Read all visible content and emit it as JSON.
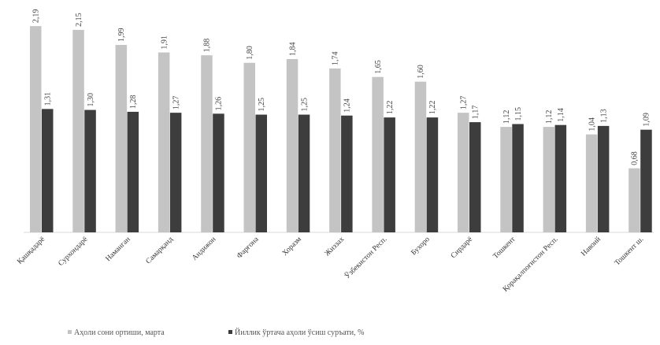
{
  "chart_data": {
    "type": "bar",
    "categories": [
      "Қашқадарё",
      "Сурхондарё",
      "Наманган",
      "Самарқанд",
      "Андижон",
      "Фарғона",
      "Хоразм",
      "Жиззах",
      "Ўзбекистон Респ.",
      "Бухоро",
      "Сирдарё",
      "Тошкент",
      "Қорақалпоғистон Респ.",
      "Навоий",
      "Тошкент ш."
    ],
    "series": [
      {
        "name": "Аҳоли сони ортиши, марта",
        "color": "#c4c4c4",
        "values": [
          2.19,
          2.15,
          1.99,
          1.91,
          1.88,
          1.8,
          1.84,
          1.74,
          1.65,
          1.6,
          1.27,
          1.12,
          1.12,
          1.04,
          0.68
        ],
        "labels": [
          "2,19",
          "2,15",
          "1,99",
          "1,91",
          "1,88",
          "1,80",
          "1,84",
          "1,74",
          "1,65",
          "1,60",
          "1,27",
          "1,12",
          "1,12",
          "1,04",
          "0,68"
        ]
      },
      {
        "name": "Йиллик ўртача аҳоли ўсиш суръати, %",
        "color": "#3d3d3d",
        "values": [
          1.31,
          1.3,
          1.28,
          1.27,
          1.26,
          1.25,
          1.25,
          1.24,
          1.22,
          1.22,
          1.17,
          1.15,
          1.14,
          1.13,
          1.09
        ],
        "labels": [
          "1,31",
          "1,30",
          "1,28",
          "1,27",
          "1,26",
          "1,25",
          "1,25",
          "1,24",
          "1,22",
          "1,22",
          "1,17",
          "1,15",
          "1,14",
          "1,13",
          "1,09"
        ]
      }
    ],
    "ylim": [
      0,
      2.35
    ],
    "grid": false,
    "legend_position": "bottom-left"
  }
}
